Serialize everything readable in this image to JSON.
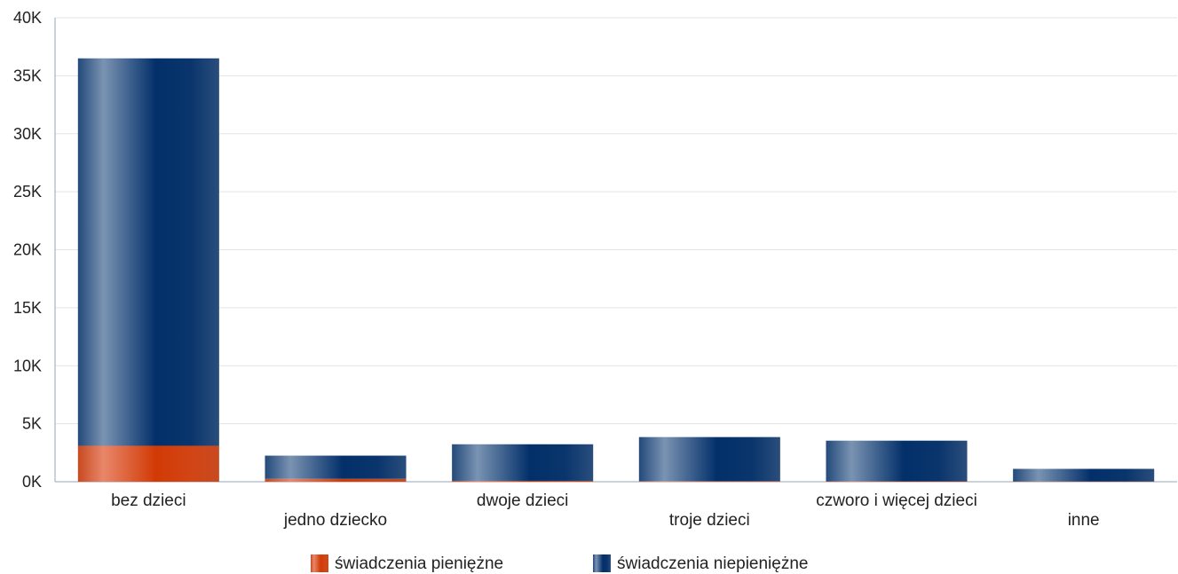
{
  "chart_data": {
    "type": "bar",
    "stacked": true,
    "categories": [
      "bez dzieci",
      "jedno dziecko",
      "dwoje dzieci",
      "troje dzieci",
      "czworo i więcej dzieci",
      "inne"
    ],
    "series": [
      {
        "name": "świadczenia pieniężne",
        "values": [
          3100,
          250,
          80,
          50,
          40,
          30
        ],
        "color": "#d2400f"
      },
      {
        "name": "świadczenia niepieniężne",
        "values": [
          33400,
          2000,
          3150,
          3800,
          3500,
          1080
        ],
        "color": "#06306a"
      }
    ],
    "ylim": [
      0,
      40000
    ],
    "yticks": [
      0,
      5000,
      10000,
      15000,
      20000,
      25000,
      30000,
      35000,
      40000
    ],
    "ytick_labels": [
      "0K",
      "5K",
      "10K",
      "15K",
      "20K",
      "25K",
      "30K",
      "35K",
      "40K"
    ],
    "grid": true,
    "legend_position": "bottom-center",
    "label_stagger": true
  }
}
